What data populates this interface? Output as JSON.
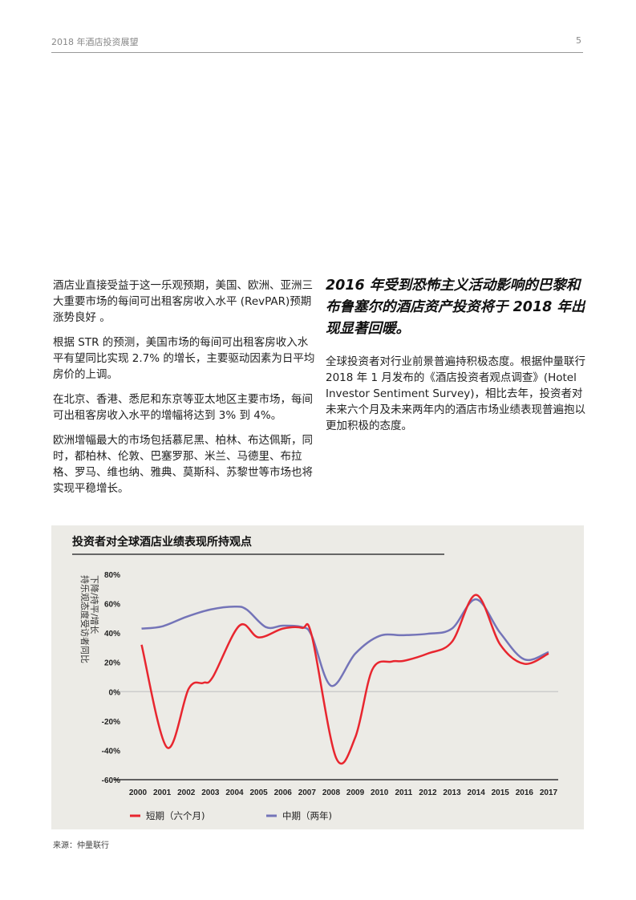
{
  "header": {
    "title": "2018 年酒店投资展望",
    "page": "5"
  },
  "left_column": [
    "酒店业直接受益于这一乐观预期，美国、欧洲、亚洲三大重要市场的每间可出租客房收入水平 (RevPAR)预期涨势良好 。",
    "根据 STR 的预测，美国市场的每间可出租客房收入水平有望同比实现 2.7% 的增长，主要驱动因素为日平均房价的上调。",
    "在北京、香港、悉尼和东京等亚太地区主要市场，每间可出租客房收入水平的增幅将达到 3% 到 4%。",
    "欧洲增幅最大的市场包括慕尼黑、柏林、布达佩斯，同时，都柏林、伦敦、巴塞罗那、米兰、马德里、布拉格、罗马、维也纳、雅典、莫斯科、苏黎世等市场也将实现平稳增长。"
  ],
  "headline": "2016 年受到恐怖主义活动影响的巴黎和布鲁塞尔的酒店资产投资将于 2018 年出现显著回暖。",
  "right_column": [
    "全球投资者对行业前景普遍持积极态度。根据仲量联行 2018 年 1 月发布的《酒店投资者观点调查》(Hotel Investor Sentiment Survey)，相比去年，投资者对未来六个月及未来两年内的酒店市场业绩表现普遍抱以更加积极的态度。"
  ],
  "source": "来源：仲量联行",
  "chart_data": {
    "type": "line",
    "title": "投资者对全球酒店业绩表现所持观点",
    "ylabel": [
      "持乐观态度受访者同比",
      "下降/持平/增长"
    ],
    "ylim": [
      -60,
      80
    ],
    "yticks": [
      "80%",
      "60%",
      "40%",
      "20%",
      "0%",
      "-20%",
      "-40%",
      "-60%"
    ],
    "ytick_values": [
      80,
      60,
      40,
      20,
      0,
      -20,
      -40,
      -60
    ],
    "categories": [
      "2000",
      "2001",
      "2002",
      "2003",
      "2004",
      "2005",
      "2006",
      "2007",
      "2008",
      "2009",
      "2010",
      "2011",
      "2012",
      "2013",
      "2014",
      "2015",
      "2016",
      "2017"
    ],
    "legend_position": "bottom",
    "series": [
      {
        "name": "短期（六个月)",
        "color": "#e8262f",
        "points": [
          [
            2000.15,
            32
          ],
          [
            2001.2,
            -38
          ],
          [
            2002.1,
            2
          ],
          [
            2002.7,
            6
          ],
          [
            2003.1,
            10
          ],
          [
            2004.2,
            45
          ],
          [
            2005,
            37
          ],
          [
            2006,
            43
          ],
          [
            2006.8,
            43.5
          ],
          [
            2007.2,
            38
          ],
          [
            2008.2,
            -45
          ],
          [
            2009,
            -31
          ],
          [
            2009.7,
            15
          ],
          [
            2010.5,
            20.5
          ],
          [
            2011,
            21
          ],
          [
            2012,
            26
          ],
          [
            2013,
            34
          ],
          [
            2014,
            66
          ],
          [
            2015,
            32
          ],
          [
            2016,
            19
          ],
          [
            2017,
            26
          ]
        ]
      },
      {
        "name": "中期（两年)",
        "color": "#7474b8",
        "points": [
          [
            2000.15,
            43
          ],
          [
            2001,
            44.5
          ],
          [
            2002,
            51
          ],
          [
            2003,
            56
          ],
          [
            2004,
            58
          ],
          [
            2004.5,
            56
          ],
          [
            2005.3,
            44
          ],
          [
            2006,
            45
          ],
          [
            2006.8,
            44
          ],
          [
            2007.2,
            38
          ],
          [
            2008,
            4
          ],
          [
            2009,
            26
          ],
          [
            2010,
            38
          ],
          [
            2011,
            38.5
          ],
          [
            2012,
            39.5
          ],
          [
            2013,
            43
          ],
          [
            2014,
            63
          ],
          [
            2015,
            40
          ],
          [
            2016,
            22
          ],
          [
            2017,
            27
          ]
        ]
      }
    ]
  }
}
